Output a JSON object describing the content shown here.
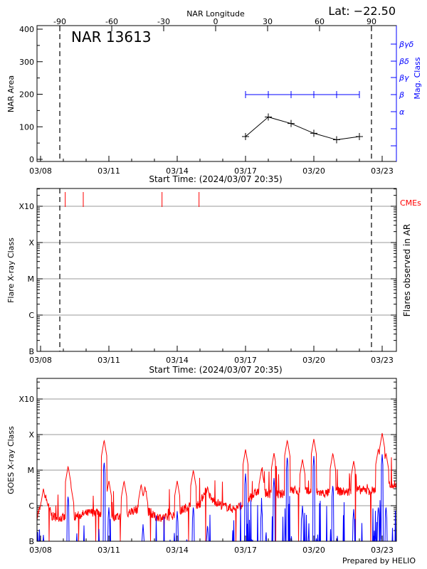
{
  "chart_data": [
    {
      "type": "line",
      "title": "NAR 13613",
      "header_right": "Lat: −22.50",
      "top_axis": {
        "label": "NAR Longitude",
        "ticks": [
          "-90",
          "-60",
          "-30",
          "0",
          "30",
          "60",
          "90"
        ],
        "range": [
          -90,
          90
        ],
        "dashed_markers": [
          -90,
          90
        ]
      },
      "xlabel": "Start Time: (2024/03/07 20:35)",
      "x_ticks": [
        "03/08",
        "03/11",
        "03/14",
        "03/17",
        "03/20",
        "03/23"
      ],
      "ylabel": "NAR Area",
      "ylim": [
        0,
        400
      ],
      "y_ticks": [
        "0",
        "100",
        "200",
        "300",
        "400"
      ],
      "y2label": "Mag. Class",
      "y2_ticks": [
        "α",
        "β",
        "βγ",
        "βδ",
        "βγδ"
      ],
      "series": [
        {
          "name": "NAR Area",
          "color": "#000000",
          "x": [
            "03/17",
            "03/18",
            "03/19",
            "03/20",
            "03/21",
            "03/22"
          ],
          "values": [
            70,
            130,
            110,
            80,
            60,
            70
          ]
        },
        {
          "name": "Mag. Class",
          "color": "#0000ff",
          "x": [
            "03/17",
            "03/18",
            "03/19",
            "03/20",
            "03/21",
            "03/22"
          ],
          "values": [
            "β",
            "β",
            "β",
            "β",
            "β",
            "β"
          ]
        }
      ]
    },
    {
      "type": "bar",
      "xlabel": "Start Time: (2024/03/07 20:35)",
      "x_ticks": [
        "03/08",
        "03/11",
        "03/14",
        "03/17",
        "03/20",
        "03/23"
      ],
      "ylabel": "Flare X-ray Class",
      "y_ticks": [
        "B",
        "C",
        "M",
        "X",
        "X10"
      ],
      "y2label": "Flares observed in AR",
      "legend_right": "CMEs",
      "cme_color": "#ff0000",
      "cme_times": [
        "03/09 02:00",
        "03/09 21:00",
        "03/13 08:00",
        "03/14 23:00"
      ],
      "grid": true
    },
    {
      "type": "line",
      "x_ticks": [
        "03/08",
        "03/11",
        "03/14",
        "03/17",
        "03/20",
        "03/23"
      ],
      "ylabel": "GOES X-ray Class",
      "y_ticks": [
        "B",
        "C",
        "M",
        "X",
        "X10"
      ],
      "y_scale": "log",
      "grid": true,
      "footer": "Prepared by HELIO",
      "series": [
        {
          "color": "#ff0000",
          "baseline": [
            [
              "03/07 21:00",
              6e-07
            ],
            [
              "03/08 05:00",
              1.8e-06
            ],
            [
              "03/08 12:00",
              5e-07
            ],
            [
              "03/09 00:00",
              4.5e-07
            ],
            [
              "03/09 12:00",
              5e-07
            ],
            [
              "03/10 00:00",
              6e-07
            ],
            [
              "03/10 12:00",
              7e-07
            ],
            [
              "03/11 00:00",
              4e-07
            ],
            [
              "03/11 12:00",
              5e-07
            ],
            [
              "03/12 00:00",
              7e-07
            ],
            [
              "03/12 12:00",
              9e-07
            ],
            [
              "03/13 00:00",
              5e-07
            ],
            [
              "03/13 12:00",
              4.5e-07
            ],
            [
              "03/14 00:00",
              6e-07
            ],
            [
              "03/14 12:00",
              1e-06
            ],
            [
              "03/15 00:00",
              1.1e-06
            ],
            [
              "03/15 06:00",
              3e-06
            ],
            [
              "03/15 12:00",
              1.5e-06
            ],
            [
              "03/16 00:00",
              1e-06
            ],
            [
              "03/16 12:00",
              8e-07
            ],
            [
              "03/17 00:00",
              1.2e-06
            ],
            [
              "03/17 12:00",
              2.5e-06
            ],
            [
              "03/18 00:00",
              2.2e-06
            ],
            [
              "03/18 12:00",
              2e-06
            ],
            [
              "03/19 00:00",
              2.8e-06
            ],
            [
              "03/19 12:00",
              2.5e-06
            ],
            [
              "03/20 00:00",
              2.5e-06
            ],
            [
              "03/20 12:00",
              2.2e-06
            ],
            [
              "03/21 00:00",
              2.6e-06
            ],
            [
              "03/21 12:00",
              2.4e-06
            ],
            [
              "03/22 00:00",
              2.8e-06
            ],
            [
              "03/22 12:00",
              2.6e-06
            ],
            [
              "03/23 00:00",
              3.2e-06
            ],
            [
              "03/23 08:00",
              4e-06
            ]
          ],
          "peaks": [
            [
              "03/08 03:00",
              3e-06
            ],
            [
              "03/09 05:00",
              1.3e-05
            ],
            [
              "03/09 08:00",
              3.5e-06
            ],
            [
              "03/10 19:00",
              7e-05
            ],
            [
              "03/11 00:00",
              5e-06
            ],
            [
              "03/11 16:00",
              5e-06
            ],
            [
              "03/12 10:00",
              4e-06
            ],
            [
              "03/12 14:00",
              3.5e-06
            ],
            [
              "03/14 00:00",
              5e-06
            ],
            [
              "03/14 17:00",
              1e-05
            ],
            [
              "03/15 08:00",
              3.5e-06
            ],
            [
              "03/17 00:00",
              3.8e-05
            ],
            [
              "03/17 17:00",
              1.1e-05
            ],
            [
              "03/18 06:00",
              3e-05
            ],
            [
              "03/18 20:00",
              7e-05
            ],
            [
              "03/19 12:00",
              2e-05
            ],
            [
              "03/20 00:00",
              7.5e-05
            ],
            [
              "03/20 20:00",
              3e-05
            ],
            [
              "03/21 18:00",
              1.8e-05
            ],
            [
              "03/22 20:00",
              4e-05
            ],
            [
              "03/23 00:00",
              0.00011
            ],
            [
              "03/23 04:00",
              3e-05
            ]
          ],
          "dropouts": [
            "03/08 09:00",
            "03/09 16:00",
            "03/10 10:00",
            "03/10 13:00",
            "03/11 12:00",
            "03/12 20:00",
            "03/13 10:00",
            "03/14 12:00",
            "03/15 06:00",
            "03/16 14:00",
            "03/18 08:00",
            "03/19 08:00",
            "03/21 20:00",
            "03/22 12:00"
          ]
        },
        {
          "color": "#0000ff",
          "peaks": [
            [
              "03/08 03:00",
              1.5e-07
            ],
            [
              "03/09 05:00",
              2e-06
            ],
            [
              "03/10 19:00",
              1.8e-05
            ],
            [
              "03/11 00:00",
              9e-07
            ],
            [
              "03/12 12:00",
              3e-07
            ],
            [
              "03/14 00:00",
              7e-07
            ],
            [
              "03/14 17:00",
              1e-06
            ],
            [
              "03/15 08:00",
              3e-07
            ],
            [
              "03/17 00:00",
              8e-06
            ],
            [
              "03/17 17:00",
              1e-06
            ],
            [
              "03/18 06:00",
              6e-06
            ],
            [
              "03/18 20:00",
              2.5e-05
            ],
            [
              "03/19 12:00",
              1e-06
            ],
            [
              "03/20 00:00",
              2.5e-05
            ],
            [
              "03/20 20:00",
              4e-06
            ],
            [
              "03/21 18:00",
              8e-07
            ],
            [
              "03/22 20:00",
              1e-06
            ],
            [
              "03/23 00:00",
              2.8e-05
            ],
            [
              "03/23 04:00",
              1e-06
            ]
          ]
        }
      ]
    }
  ]
}
